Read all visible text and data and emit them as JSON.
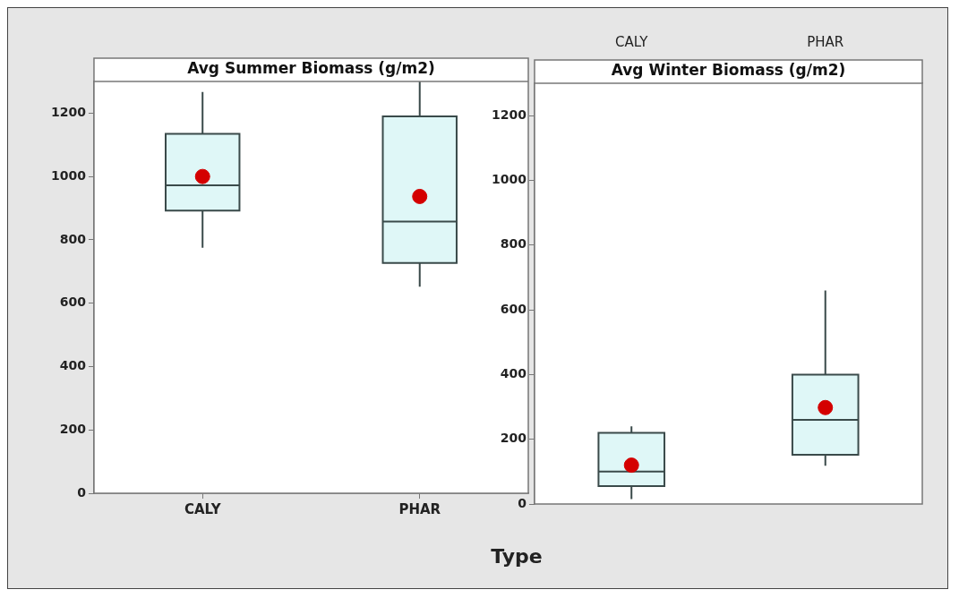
{
  "chart_data": [
    {
      "type": "box",
      "title": "Avg Summer Biomass (g/m2)",
      "xlabel": "Type",
      "categories": [
        "CALY",
        "PHAR"
      ],
      "color": "#dff7f7",
      "marker": "circle",
      "ylim": [
        0,
        1300
      ],
      "yticks": [
        0,
        200,
        400,
        600,
        800,
        1000,
        1200
      ],
      "grid": false,
      "legend": false,
      "boxes": [
        {
          "low": 775,
          "q1": 892,
          "median": 972,
          "q3": 1135,
          "high": 1267,
          "mean": 1000
        },
        {
          "low": 652,
          "q1": 727,
          "median": 858,
          "q3": 1190,
          "high": 1300,
          "mean": 937
        }
      ]
    },
    {
      "type": "box",
      "title": "Avg Winter Biomass (g/m2)",
      "categories": [
        "CALY",
        "PHAR"
      ],
      "color": "#dff7f7",
      "marker": "circle",
      "ylim": [
        0,
        1300
      ],
      "yticks": [
        0,
        200,
        400,
        600,
        800,
        1000,
        1200
      ],
      "grid": false,
      "legend": false,
      "boxes": [
        {
          "low": 15,
          "q1": 55,
          "median": 100,
          "q3": 220,
          "high": 240,
          "mean": 120
        },
        {
          "low": 118,
          "q1": 152,
          "median": 260,
          "q3": 400,
          "high": 660,
          "mean": 298
        }
      ]
    }
  ]
}
